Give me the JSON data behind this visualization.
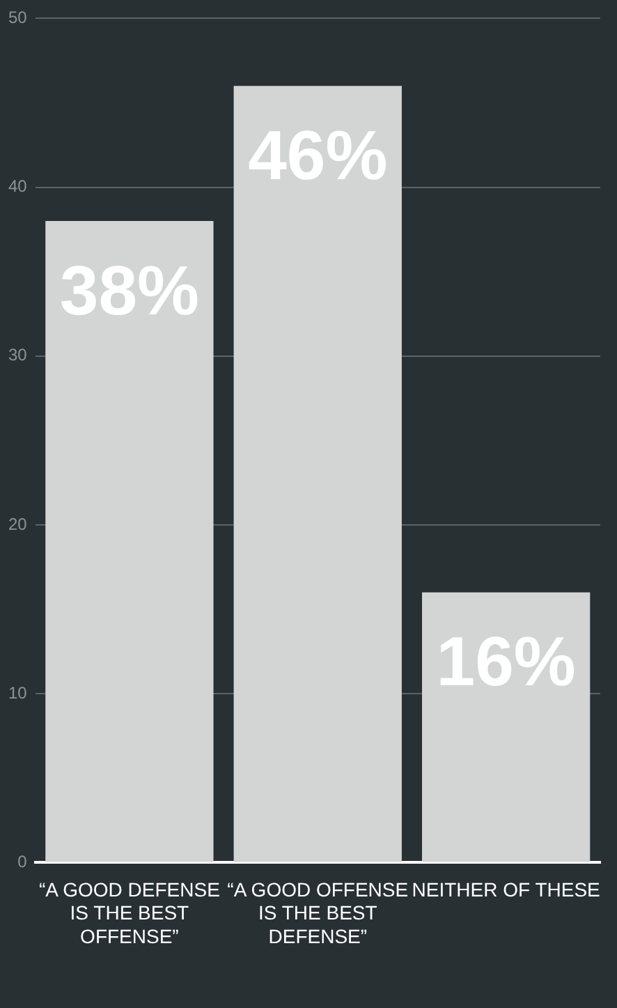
{
  "chart_data": {
    "type": "bar",
    "categories": [
      "“A GOOD DEFENSE IS THE BEST OFFENSE”",
      "“A GOOD OFFENSE IS THE BEST DEFENSE”",
      "NEITHER OF THESE"
    ],
    "values": [
      38,
      46,
      16
    ],
    "value_labels": [
      "38%",
      "46%",
      "16%"
    ],
    "color": "#d3d4d4",
    "ylim": [
      0,
      50
    ],
    "yticks": [
      0,
      10,
      20,
      30,
      40,
      50
    ],
    "grid": "y"
  }
}
